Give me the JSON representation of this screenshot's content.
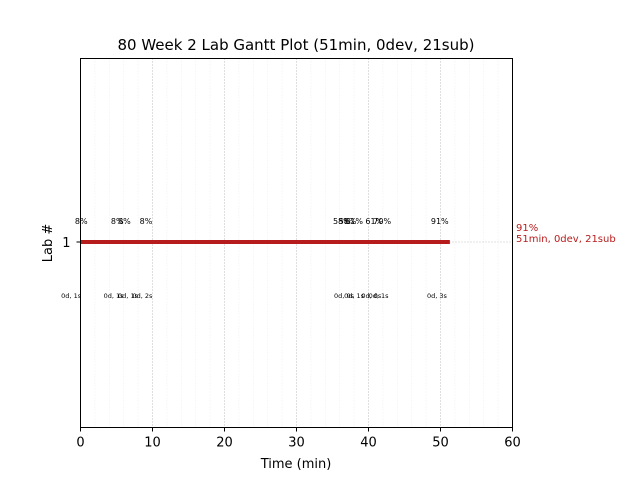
{
  "chart_data": {
    "type": "gantt",
    "title": "80 Week 2 Lab Gantt Plot (51min, 0dev, 21sub)",
    "xlabel": "Time (min)",
    "ylabel": "Lab #",
    "xlim": [
      0,
      60
    ],
    "x_ticks": [
      0,
      10,
      20,
      30,
      40,
      50,
      60
    ],
    "x_tick_labels": [
      "0",
      "10",
      "20",
      "30",
      "40",
      "50",
      "60"
    ],
    "y_categories": [
      "1"
    ],
    "grid": true,
    "bar": {
      "lab": "1",
      "start": 0,
      "end": 51.3,
      "color": "#b71c1c"
    },
    "bar_end_label": [
      "91%",
      "51min, 0dev, 21sub"
    ],
    "percent_annotations": [
      {
        "x": 0.1,
        "label": "8%"
      },
      {
        "x": 5.1,
        "label": "8%"
      },
      {
        "x": 6.1,
        "label": "8%"
      },
      {
        "x": 9.1,
        "label": "8%"
      },
      {
        "x": 36.3,
        "label": "58%"
      },
      {
        "x": 37.1,
        "label": "58%"
      },
      {
        "x": 38.0,
        "label": "61%"
      },
      {
        "x": 40.8,
        "label": "61%"
      },
      {
        "x": 41.9,
        "label": "70%"
      },
      {
        "x": 49.9,
        "label": "91%"
      }
    ],
    "time_annotations": [
      {
        "x": -1.3,
        "label": "0d, 1s"
      },
      {
        "x": 4.6,
        "label": "0d, 1s"
      },
      {
        "x": 6.6,
        "label": "0d, 1s"
      },
      {
        "x": 8.6,
        "label": "0d, 2s"
      },
      {
        "x": 36.6,
        "label": "0d, 0s"
      },
      {
        "x": 38.0,
        "label": "0d, 1s"
      },
      {
        "x": 40.4,
        "label": "0d, 0s"
      },
      {
        "x": 41.4,
        "label": "0d, 1s"
      },
      {
        "x": 49.5,
        "label": "0d, 3s"
      }
    ]
  }
}
